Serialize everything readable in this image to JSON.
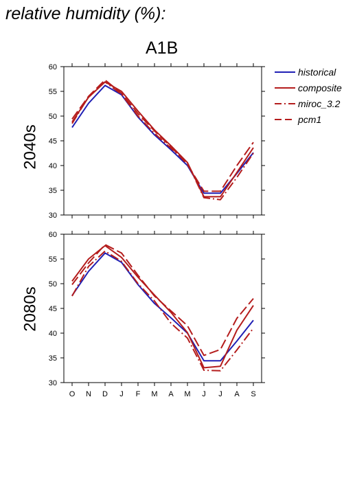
{
  "page_title": "relative humidity (%):",
  "scenario": "A1B",
  "colors": {
    "historical": "#1f1fb4",
    "model": "#b41c1c",
    "axis": "#000000"
  },
  "legend": [
    {
      "name": "historical",
      "style": "solid",
      "color": "#1f1fb4"
    },
    {
      "name": "composite",
      "style": "solid",
      "color": "#b41c1c"
    },
    {
      "name": "miroc_3.2",
      "style": "dashdot",
      "color": "#b41c1c"
    },
    {
      "name": "pcm1",
      "style": "dashed",
      "color": "#b41c1c"
    }
  ],
  "chart_data": [
    {
      "type": "line",
      "panel_label": "2040s",
      "categories": [
        "O",
        "N",
        "D",
        "J",
        "F",
        "M",
        "A",
        "M",
        "J",
        "J",
        "A",
        "S"
      ],
      "ylim": [
        30,
        60
      ],
      "yticks": [
        30,
        35,
        40,
        45,
        50,
        55,
        60
      ],
      "series": [
        {
          "name": "historical",
          "style": "solid",
          "color": "#1f1fb4",
          "values": [
            47.7,
            52.6,
            56.2,
            54.3,
            49.8,
            46.2,
            43.2,
            40.0,
            34.4,
            34.4,
            38.4,
            42.6
          ]
        },
        {
          "name": "composite",
          "style": "solid",
          "color": "#b41c1c",
          "values": [
            48.8,
            53.8,
            56.9,
            55.0,
            51.0,
            47.2,
            44.0,
            40.6,
            33.7,
            33.7,
            38.6,
            43.6
          ]
        },
        {
          "name": "miroc_3.2",
          "style": "dashdot",
          "color": "#b41c1c",
          "values": [
            48.5,
            53.9,
            56.9,
            54.4,
            50.0,
            46.5,
            43.5,
            40.5,
            33.5,
            33.1,
            37.6,
            42.5
          ]
        },
        {
          "name": "pcm1",
          "style": "dashed",
          "color": "#b41c1c",
          "values": [
            49.4,
            54.0,
            57.3,
            54.6,
            50.5,
            47.0,
            43.8,
            40.2,
            34.8,
            34.8,
            40.0,
            44.7
          ]
        }
      ]
    },
    {
      "type": "line",
      "panel_label": "2080s",
      "categories": [
        "O",
        "N",
        "D",
        "J",
        "F",
        "M",
        "A",
        "M",
        "J",
        "J",
        "A",
        "S"
      ],
      "ylim": [
        30,
        60
      ],
      "yticks": [
        30,
        35,
        40,
        45,
        50,
        55,
        60
      ],
      "series": [
        {
          "name": "historical",
          "style": "solid",
          "color": "#1f1fb4",
          "values": [
            47.6,
            52.5,
            56.2,
            54.3,
            49.8,
            46.0,
            43.1,
            40.0,
            34.4,
            34.4,
            38.4,
            42.6
          ]
        },
        {
          "name": "composite",
          "style": "solid",
          "color": "#b41c1c",
          "values": [
            50.5,
            55.0,
            57.7,
            55.3,
            51.3,
            47.7,
            44.2,
            40.1,
            33.0,
            33.3,
            40.6,
            45.6
          ]
        },
        {
          "name": "miroc_3.2",
          "style": "dashdot",
          "color": "#b41c1c",
          "values": [
            47.5,
            53.5,
            56.6,
            54.5,
            50.0,
            46.5,
            42.0,
            39.0,
            32.5,
            32.4,
            36.6,
            41.0
          ]
        },
        {
          "name": "pcm1",
          "style": "dashed",
          "color": "#b41c1c",
          "values": [
            49.8,
            54.2,
            57.9,
            56.2,
            51.7,
            47.5,
            44.5,
            41.5,
            35.5,
            36.7,
            43.0,
            47.0
          ]
        }
      ]
    }
  ]
}
